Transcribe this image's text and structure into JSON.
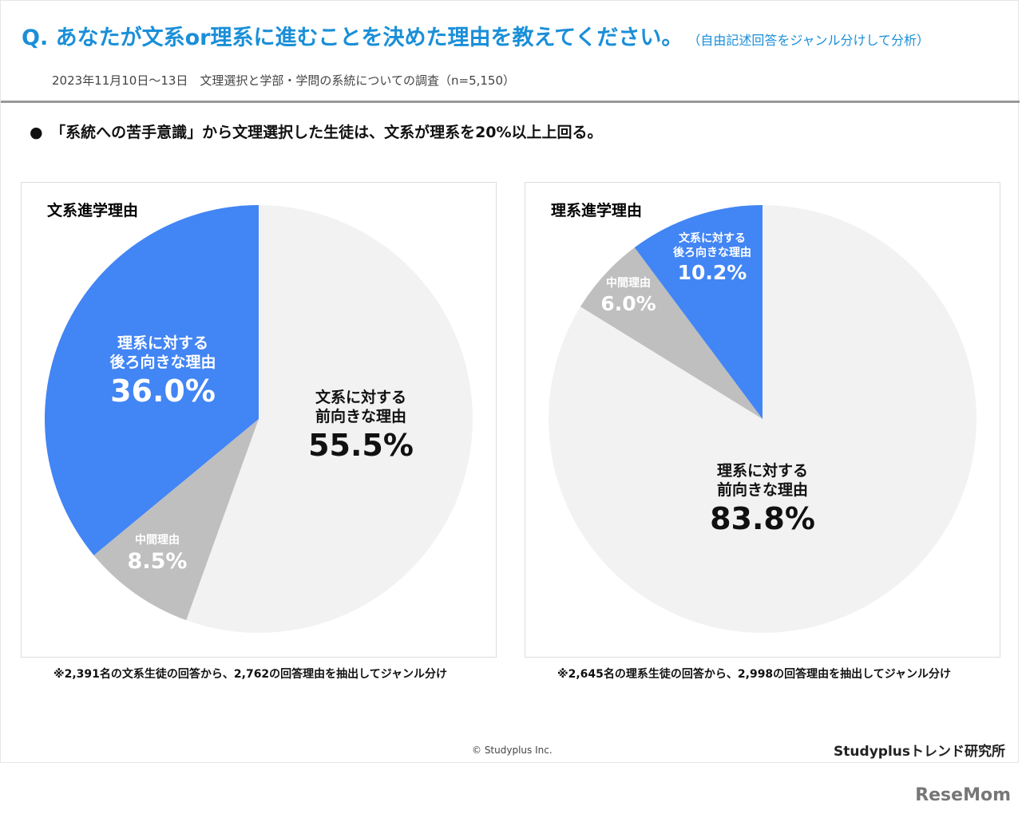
{
  "header": {
    "title": "Q. あなたが文系or理系に進むことを決めた理由を教えてください。",
    "title_note": "（自由記述回答をジャンル分けして分析）",
    "subtitle": "2023年11月10日～13日　文理選択と学部・学問の系統についての調査（n=5,150）"
  },
  "bullet": "●　「系統への苦手意識」から文理選択した生徒は、文系が理系を20%以上上回る。",
  "colors": {
    "positive": "#f2f2f2",
    "neutral": "#bfbfbf",
    "negative": "#4285f4",
    "title": "#1a8fd8"
  },
  "chart_data": [
    {
      "type": "pie",
      "title": "文系進学理由",
      "start": "12 o'clock, clockwise",
      "slices": [
        {
          "label_lines": [
            "文系に対する",
            "前向きな理由"
          ],
          "value": 55.5,
          "display": "55.5%",
          "color": "#f2f2f2"
        },
        {
          "label_lines": [
            "中間理由"
          ],
          "value": 8.5,
          "display": "8.5%",
          "color": "#bfbfbf"
        },
        {
          "label_lines": [
            "理系に対する",
            "後ろ向きな理由"
          ],
          "value": 36.0,
          "display": "36.0%",
          "color": "#4285f4"
        }
      ],
      "note": "※2,391名の文系生徒の回答から、2,762の回答理由を抽出してジャンル分け"
    },
    {
      "type": "pie",
      "title": "理系進学理由",
      "start": "12 o'clock, clockwise",
      "slices": [
        {
          "label_lines": [
            "理系に対する",
            "前向きな理由"
          ],
          "value": 83.8,
          "display": "83.8%",
          "color": "#f2f2f2"
        },
        {
          "label_lines": [
            "中間理由"
          ],
          "value": 6.0,
          "display": "6.0%",
          "color": "#bfbfbf"
        },
        {
          "label_lines": [
            "文系に対する",
            "後ろ向きな理由"
          ],
          "value": 10.2,
          "display": "10.2%",
          "color": "#4285f4"
        }
      ],
      "note": "※2,645名の理系生徒の回答から、2,998の回答理由を抽出してジャンル分け"
    }
  ],
  "footer": {
    "copyright": "© Studyplus Inc.",
    "brand": "Studyplusトレンド研究所",
    "watermark": "ReseMom"
  }
}
